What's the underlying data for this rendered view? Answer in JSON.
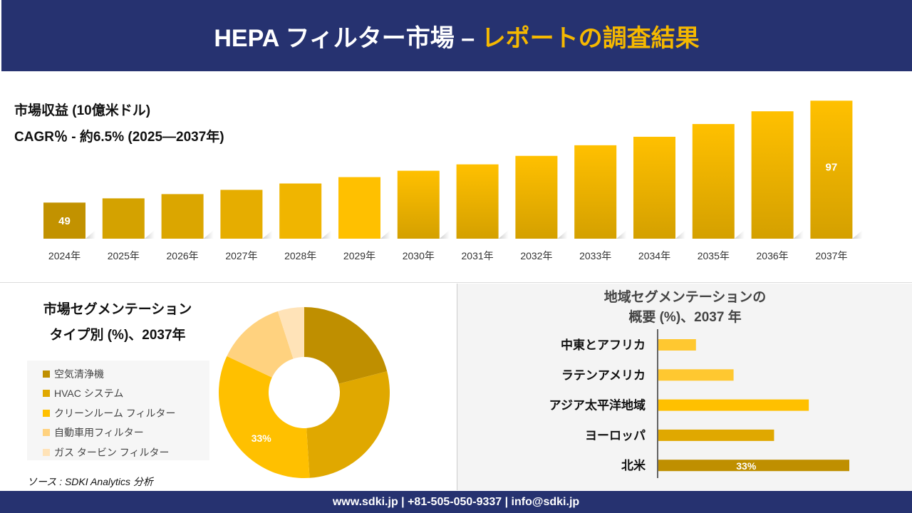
{
  "header": {
    "title_main": "HEPA フィルター市場 –",
    "title_accent": "レポートの調査結果"
  },
  "colors": {
    "navy": "#263270",
    "accent": "#f5b800"
  },
  "chart_data": [
    {
      "type": "bar",
      "title": "市場収益 (10億米ドル)",
      "subtitle": "CAGR％ - 約6.5% (2025—2037年)",
      "categories": [
        "2024年",
        "2025年",
        "2026年",
        "2027年",
        "2028年",
        "2029年",
        "2030年",
        "2031年",
        "2032年",
        "2033年",
        "2034年",
        "2035年",
        "2036年",
        "2037年"
      ],
      "values": [
        49,
        51,
        53,
        55,
        58,
        61,
        64,
        67,
        71,
        76,
        80,
        86,
        92,
        97
      ],
      "data_labels": {
        "0": "49",
        "13": "97"
      },
      "ylim": [
        32,
        100
      ],
      "grid": false,
      "colors": [
        "#c29200",
        "#d4a200",
        "#dba600",
        "#e6ad00",
        "#f0b500",
        "#ffc000"
      ]
    },
    {
      "type": "pie",
      "title_lines": [
        "市場セグメンテーション",
        "タイプ別 (%)、2037年"
      ],
      "categories": [
        "空気清浄機",
        "HVAC システム",
        "クリーンルーム フィルター",
        "自動車用フィルター",
        "ガス タービン フィルター"
      ],
      "values": [
        21,
        28,
        33,
        13,
        5
      ],
      "colors": [
        "#bf8f00",
        "#e0a800",
        "#ffc000",
        "#ffd27f",
        "#ffe3b8"
      ],
      "data_labels": {
        "2": "33%"
      },
      "legend": "left"
    },
    {
      "type": "bar",
      "orientation": "horizontal",
      "title_lines": [
        "地域セグメンテーションの",
        "概要 (%)、2037 年"
      ],
      "categories": [
        "中東とアフリカ",
        "ラテンアメリカ",
        "アジア太平洋地域",
        "ヨーロッパ",
        "北米"
      ],
      "values": [
        6.5,
        13,
        26,
        20,
        33
      ],
      "colors": [
        "#ffc830",
        "#ffc830",
        "#ffc000",
        "#e0a800",
        "#bf8f00"
      ],
      "data_labels": {
        "4": "33%"
      }
    }
  ],
  "source": "ソース : SDKI Analytics 分析",
  "footer": "www.sdki.jp | +81-505-050-9337 | info@sdki.jp"
}
